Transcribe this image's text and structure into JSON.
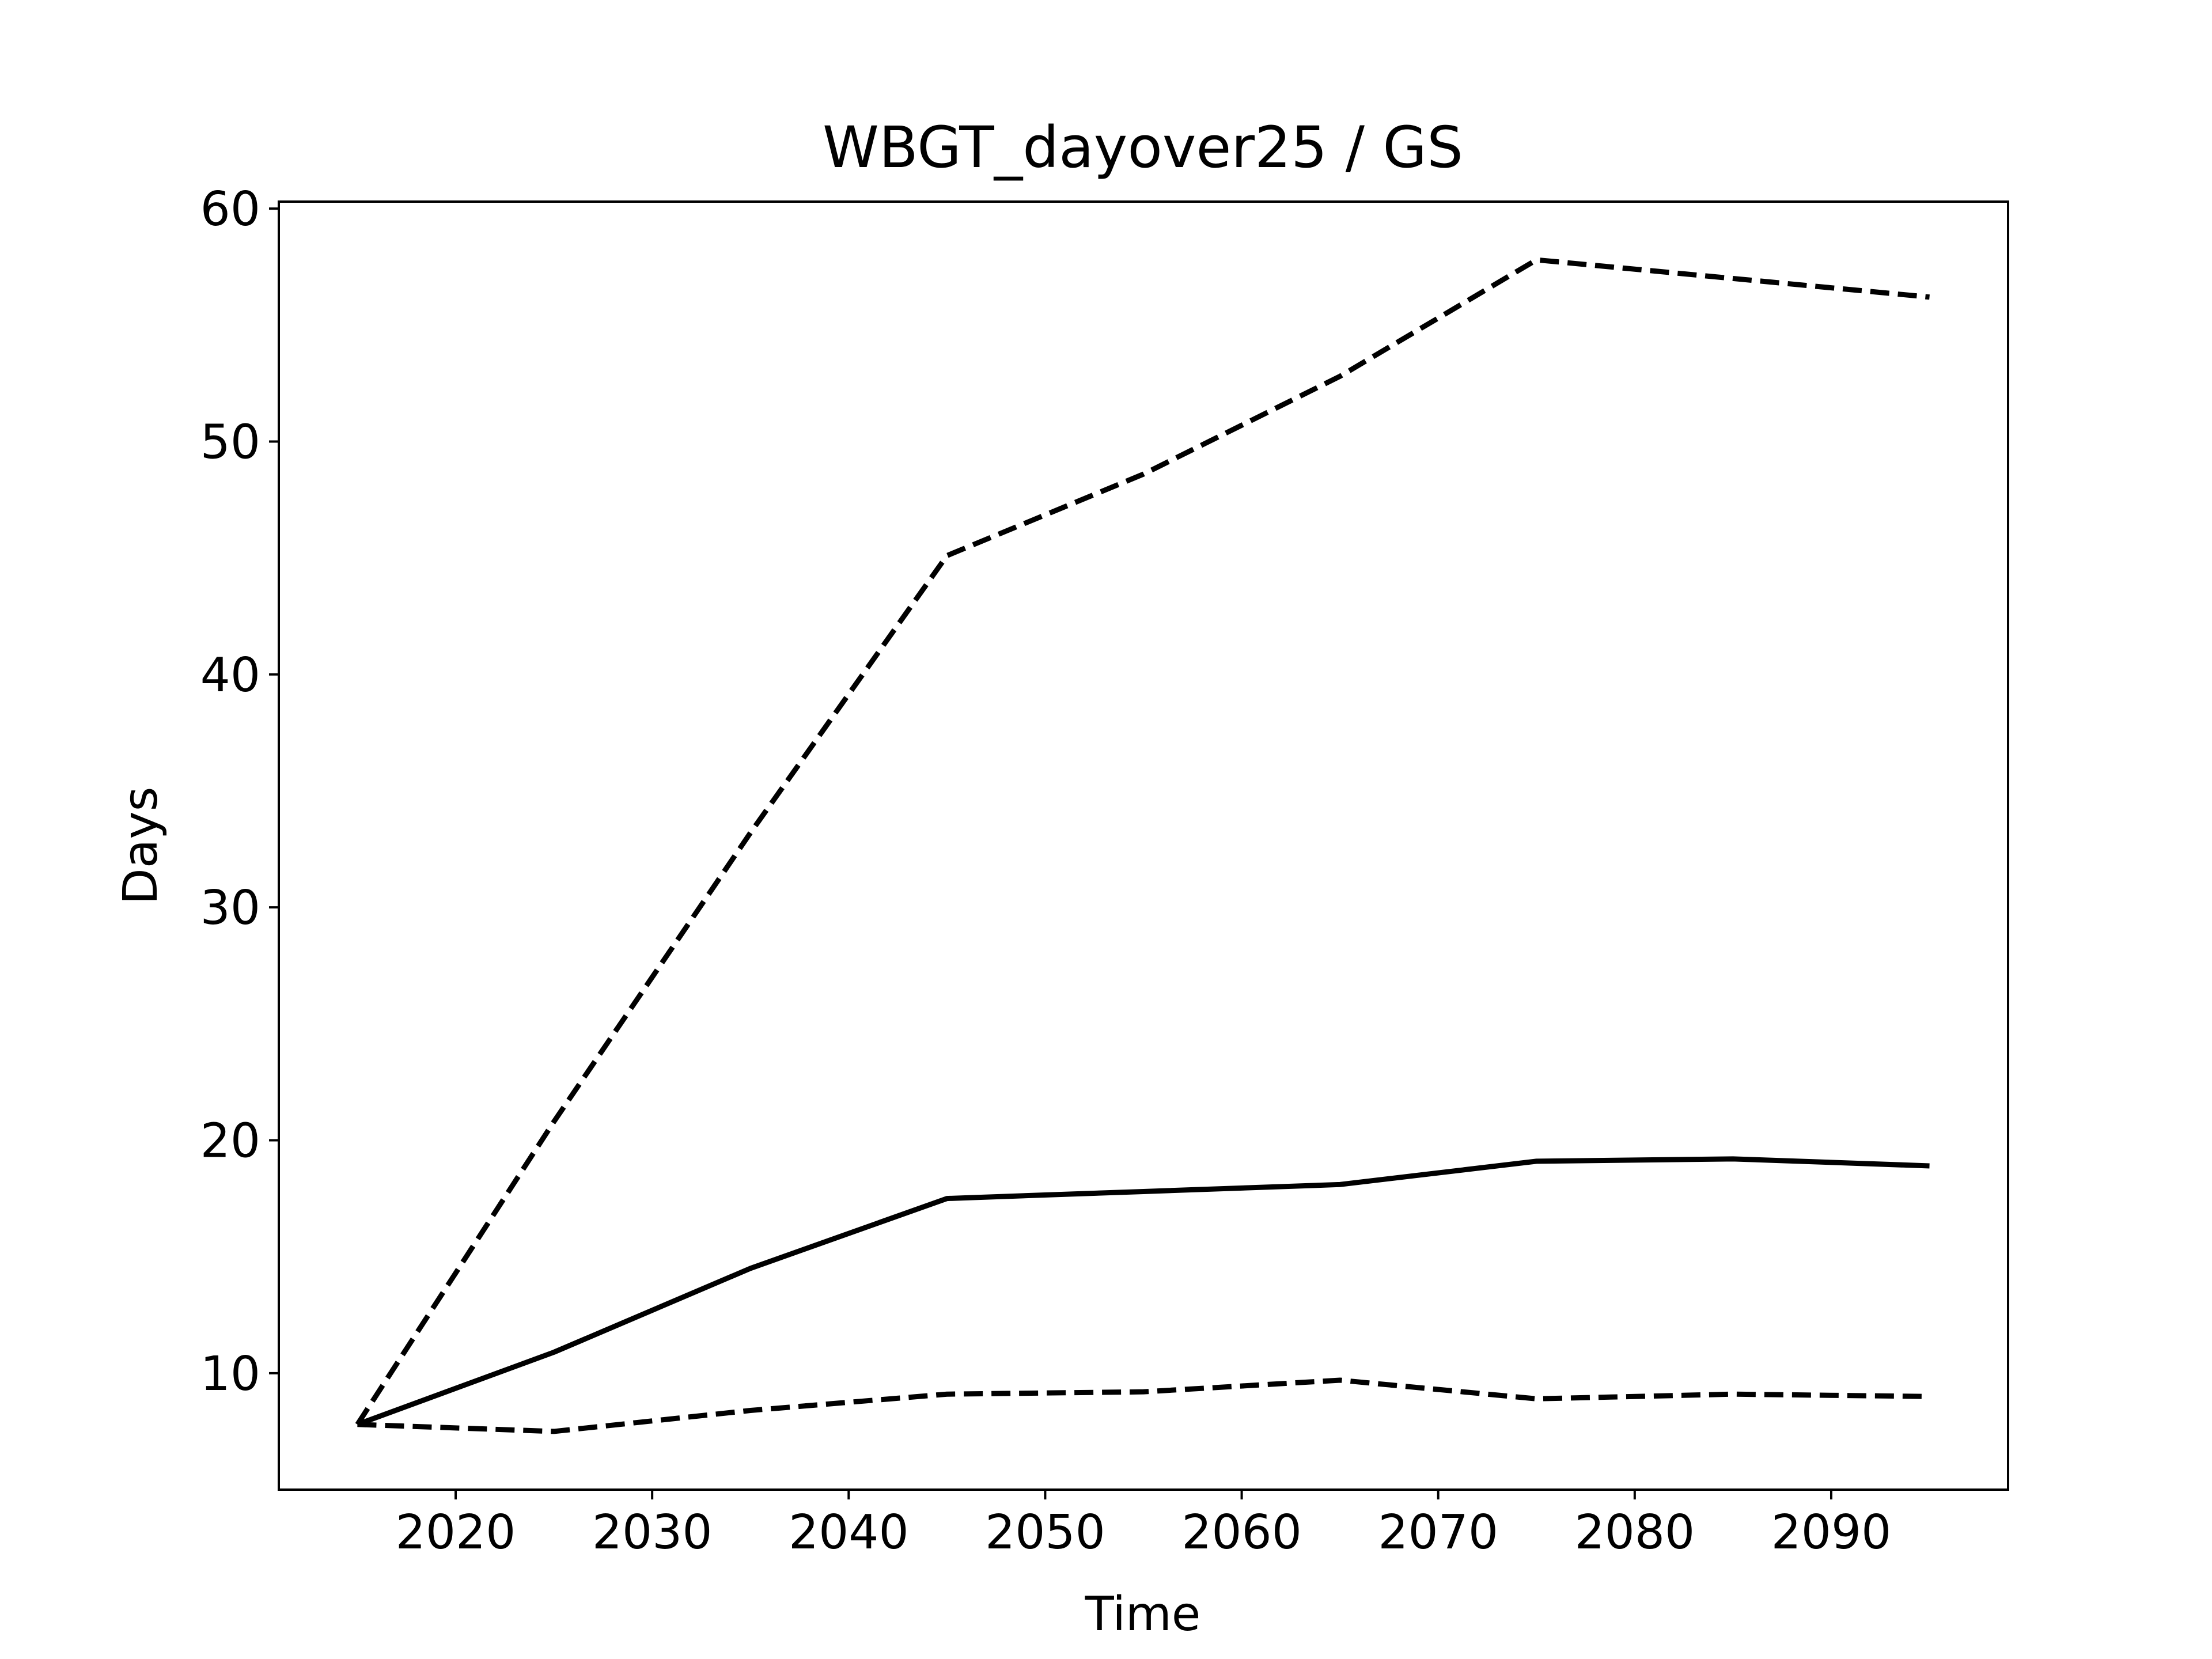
{
  "chart_data": {
    "type": "line",
    "title": "WBGT_dayover25 / GS",
    "xlabel": "Time",
    "ylabel": "Days",
    "xlim": [
      2011,
      2099
    ],
    "ylim": [
      5,
      60.3
    ],
    "xticks": [
      2020,
      2030,
      2040,
      2050,
      2060,
      2070,
      2080,
      2090
    ],
    "yticks": [
      10,
      20,
      30,
      40,
      50,
      60
    ],
    "grid": false,
    "legend": "none",
    "x": [
      2015,
      2025,
      2035,
      2045,
      2055,
      2065,
      2075,
      2085,
      2095
    ],
    "series": [
      {
        "style": "dashed",
        "color": "#000000",
        "values": [
          7.8,
          20.8,
          33.2,
          45.1,
          48.6,
          52.8,
          57.8,
          57.0,
          56.2
        ]
      },
      {
        "style": "solid",
        "color": "#000000",
        "values": [
          7.8,
          10.9,
          14.5,
          17.5,
          17.8,
          18.1,
          19.1,
          19.2,
          18.9
        ]
      },
      {
        "style": "dashed",
        "color": "#000000",
        "values": [
          7.8,
          7.5,
          8.4,
          9.1,
          9.2,
          9.7,
          8.9,
          9.1,
          9.0
        ]
      }
    ]
  }
}
